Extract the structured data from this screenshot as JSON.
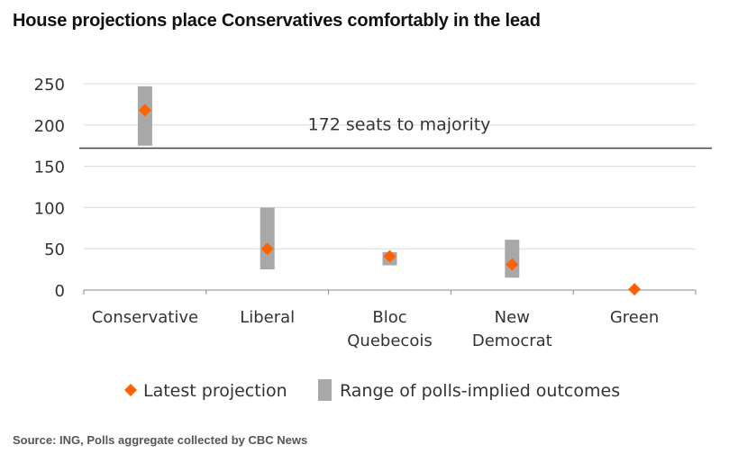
{
  "title": "House projections place Conservatives comfortably in the lead",
  "source": "Source: ING, Polls aggregate collected by CBC News",
  "colors": {
    "marker": "#FF6200",
    "range": "#A8A8A8",
    "grid": "#D9D9D9",
    "majority_line": "#444444",
    "axis": "#888888"
  },
  "chart_data": {
    "type": "scatter",
    "title": "House projections place Conservatives comfortably in the lead",
    "categories": [
      "Conservative",
      "Liberal",
      "Bloc Quebecois",
      "New Democrat",
      "Green"
    ],
    "category_lines": [
      [
        "Conservative"
      ],
      [
        "Liberal"
      ],
      [
        "Bloc",
        "Quebecois"
      ],
      [
        "New",
        "Democrat"
      ],
      [
        "Green"
      ]
    ],
    "series": [
      {
        "name": "Latest projection",
        "values": [
          218,
          50,
          41,
          31,
          1
        ]
      },
      {
        "name": "Range of polls-implied outcomes",
        "ranges": [
          [
            175,
            247
          ],
          [
            25,
            100
          ],
          [
            30,
            46
          ],
          [
            15,
            61
          ],
          null
        ]
      }
    ],
    "yticks": [
      0,
      50,
      100,
      150,
      200,
      250
    ],
    "ylim": [
      0,
      250
    ],
    "majority": {
      "value": 172,
      "label": "172 seats to majority"
    },
    "grid": true,
    "legend_position": "bottom"
  }
}
